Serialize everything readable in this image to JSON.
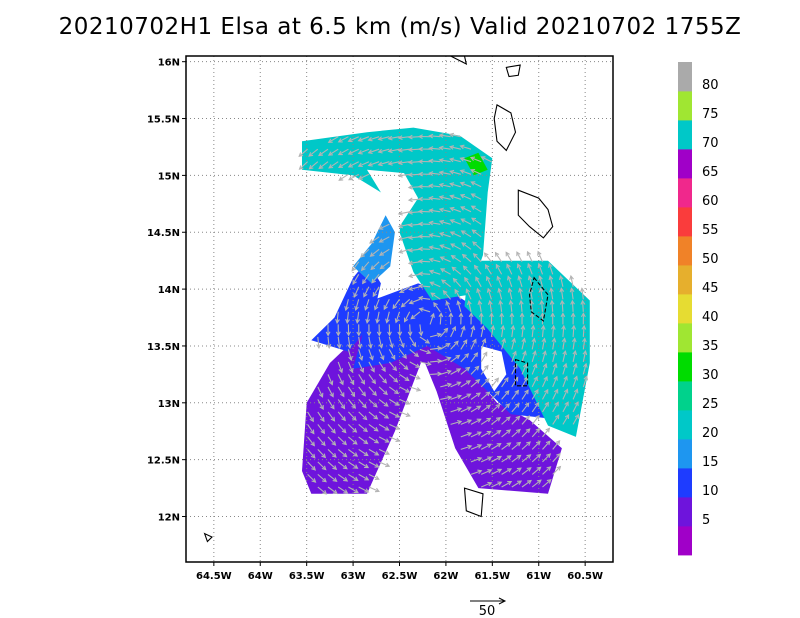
{
  "title": "20210702H1 Elsa at 6.5 km (m/s) Valid 20210702  1755Z",
  "chart_data": {
    "type": "heatmap",
    "title": "20210702H1 Elsa at 6.5 km (m/s) Valid 20210702  1755Z",
    "xlabel": "",
    "ylabel": "",
    "xlim": [
      -64.8,
      -60.2
    ],
    "ylim": [
      11.6,
      16.05
    ],
    "grid": true,
    "x_ticks": [
      {
        "value": -64.5,
        "label": "64.5W"
      },
      {
        "value": -64.0,
        "label": "64W"
      },
      {
        "value": -63.5,
        "label": "63.5W"
      },
      {
        "value": -63.0,
        "label": "63W"
      },
      {
        "value": -62.5,
        "label": "62.5W"
      },
      {
        "value": -62.0,
        "label": "62W"
      },
      {
        "value": -61.5,
        "label": "61.5W"
      },
      {
        "value": -61.0,
        "label": "61W"
      },
      {
        "value": -60.5,
        "label": "60.5W"
      }
    ],
    "y_ticks": [
      {
        "value": 12.0,
        "label": "12N"
      },
      {
        "value": 12.5,
        "label": "12.5N"
      },
      {
        "value": 13.0,
        "label": "13N"
      },
      {
        "value": 13.5,
        "label": "13.5N"
      },
      {
        "value": 14.0,
        "label": "14N"
      },
      {
        "value": 14.5,
        "label": "14.5N"
      },
      {
        "value": 15.0,
        "label": "15N"
      },
      {
        "value": 15.5,
        "label": "15.5N"
      },
      {
        "value": 16.0,
        "label": "16N"
      }
    ],
    "colorbar": {
      "levels": [
        0,
        5,
        10,
        15,
        20,
        25,
        30,
        35,
        40,
        45,
        50,
        55,
        60,
        65,
        70,
        75,
        80,
        85
      ],
      "labels": [
        "5",
        "10",
        "15",
        "20",
        "25",
        "30",
        "35",
        "40",
        "45",
        "50",
        "55",
        "60",
        "65",
        "70",
        "75",
        "80"
      ],
      "colors": [
        "#a000c8",
        "#6e14dc",
        "#1e3cff",
        "#1e96f0",
        "#00c8c8",
        "#00d28c",
        "#00dc00",
        "#a0e632",
        "#e6dc32",
        "#e6af2d",
        "#f08228",
        "#fa3c3c",
        "#f0288c",
        "#a000c8",
        "#00c8c8",
        "#a0e632",
        "#aaaaaa"
      ]
    },
    "reference_vector": {
      "label": "50",
      "speed": 50
    },
    "regions": [
      {
        "name": "west-arm",
        "value": 7,
        "polygon": [
          [
            -63.45,
            12.2
          ],
          [
            -62.85,
            12.2
          ],
          [
            -62.55,
            12.75
          ],
          [
            -62.2,
            13.5
          ],
          [
            -62.45,
            13.9
          ],
          [
            -62.8,
            13.7
          ],
          [
            -63.25,
            13.35
          ],
          [
            -63.5,
            13.0
          ],
          [
            -63.55,
            12.4
          ]
        ]
      },
      {
        "name": "east-arm",
        "value": 6,
        "polygon": [
          [
            -62.35,
            13.9
          ],
          [
            -62.0,
            13.7
          ],
          [
            -61.75,
            13.3
          ],
          [
            -61.45,
            13.0
          ],
          [
            -61.1,
            12.85
          ],
          [
            -60.75,
            12.6
          ],
          [
            -60.9,
            12.2
          ],
          [
            -61.65,
            12.25
          ],
          [
            -61.9,
            12.6
          ],
          [
            -62.1,
            13.1
          ],
          [
            -62.3,
            13.5
          ]
        ]
      },
      {
        "name": "inner-core",
        "value": 8,
        "polygon": [
          [
            -62.6,
            13.85
          ],
          [
            -62.2,
            13.95
          ],
          [
            -61.9,
            13.75
          ],
          [
            -61.6,
            13.45
          ],
          [
            -62.1,
            13.3
          ],
          [
            -62.5,
            13.45
          ]
        ]
      },
      {
        "name": "ring-blue",
        "value": 12,
        "polygon": [
          [
            -63.0,
            13.3
          ],
          [
            -62.8,
            13.9
          ],
          [
            -62.3,
            14.05
          ],
          [
            -61.9,
            13.95
          ],
          [
            -61.2,
            13.6
          ],
          [
            -60.9,
            13.2
          ],
          [
            -60.75,
            12.85
          ],
          [
            -61.3,
            12.9
          ],
          [
            -61.8,
            13.3
          ],
          [
            -62.2,
            13.5
          ],
          [
            -62.6,
            13.35
          ]
        ]
      },
      {
        "name": "northwest-blue",
        "value": 13,
        "polygon": [
          [
            -63.45,
            13.55
          ],
          [
            -63.2,
            13.75
          ],
          [
            -63.0,
            14.1
          ],
          [
            -62.85,
            14.25
          ],
          [
            -62.7,
            14.05
          ],
          [
            -62.8,
            13.7
          ],
          [
            -63.05,
            13.45
          ]
        ]
      },
      {
        "name": "teal-northwest",
        "value": 18,
        "polygon": [
          [
            -63.0,
            14.2
          ],
          [
            -62.8,
            14.4
          ],
          [
            -62.65,
            14.65
          ],
          [
            -62.55,
            14.5
          ],
          [
            -62.6,
            14.2
          ],
          [
            -62.8,
            14.05
          ]
        ]
      },
      {
        "name": "north-band",
        "value": 23,
        "polygon": [
          [
            -63.55,
            15.3
          ],
          [
            -62.85,
            15.38
          ],
          [
            -62.35,
            15.42
          ],
          [
            -61.85,
            15.35
          ],
          [
            -61.5,
            15.15
          ],
          [
            -61.55,
            14.85
          ],
          [
            -61.6,
            14.3
          ],
          [
            -61.75,
            13.95
          ],
          [
            -62.15,
            13.9
          ],
          [
            -62.35,
            14.15
          ],
          [
            -62.5,
            14.5
          ],
          [
            -62.45,
            14.75
          ],
          [
            -62.7,
            14.85
          ],
          [
            -63.0,
            15.0
          ],
          [
            -63.55,
            15.05
          ]
        ]
      },
      {
        "name": "east-green-band",
        "value": 22,
        "polygon": [
          [
            -61.75,
            14.25
          ],
          [
            -60.9,
            14.25
          ],
          [
            -60.45,
            13.9
          ],
          [
            -60.45,
            13.35
          ],
          [
            -60.6,
            12.7
          ],
          [
            -60.9,
            12.8
          ],
          [
            -61.2,
            13.3
          ],
          [
            -61.55,
            13.65
          ],
          [
            -61.8,
            13.85
          ]
        ]
      },
      {
        "name": "green-spot-north",
        "value": 32,
        "polygon": [
          [
            -61.8,
            15.15
          ],
          [
            -61.65,
            15.2
          ],
          [
            -61.55,
            15.05
          ],
          [
            -61.7,
            15.0
          ]
        ]
      },
      {
        "name": "green-spot-west",
        "value": 32,
        "polygon": [
          [
            -62.55,
            14.72
          ],
          [
            -62.45,
            14.75
          ],
          [
            -62.48,
            14.65
          ],
          [
            -62.57,
            14.66
          ]
        ]
      }
    ],
    "gaps": [
      {
        "name": "center-gap",
        "polygon": [
          [
            -61.62,
            13.5
          ],
          [
            -61.4,
            13.45
          ],
          [
            -61.35,
            13.25
          ],
          [
            -61.48,
            13.1
          ],
          [
            -61.62,
            13.3
          ]
        ]
      },
      {
        "name": "north-notch",
        "polygon": [
          [
            -62.85,
            15.05
          ],
          [
            -62.45,
            15.02
          ],
          [
            -62.3,
            14.8
          ],
          [
            -62.5,
            14.55
          ],
          [
            -62.7,
            14.85
          ]
        ]
      }
    ],
    "coastlines": [
      {
        "name": "guadeloupe-edge",
        "closed": true,
        "dashed": false,
        "points": [
          [
            -61.95,
            16.05
          ],
          [
            -61.78,
            15.98
          ],
          [
            -61.8,
            16.05
          ]
        ]
      },
      {
        "name": "marie-galante",
        "closed": true,
        "dashed": false,
        "points": [
          [
            -61.35,
            15.95
          ],
          [
            -61.2,
            15.97
          ],
          [
            -61.22,
            15.88
          ],
          [
            -61.32,
            15.87
          ]
        ]
      },
      {
        "name": "dominica",
        "closed": true,
        "dashed": false,
        "points": [
          [
            -61.45,
            15.62
          ],
          [
            -61.3,
            15.55
          ],
          [
            -61.25,
            15.38
          ],
          [
            -61.35,
            15.22
          ],
          [
            -61.45,
            15.3
          ],
          [
            -61.48,
            15.5
          ]
        ]
      },
      {
        "name": "martinique",
        "closed": true,
        "dashed": false,
        "points": [
          [
            -61.22,
            14.87
          ],
          [
            -61.0,
            14.8
          ],
          [
            -60.9,
            14.7
          ],
          [
            -60.85,
            14.55
          ],
          [
            -60.95,
            14.45
          ],
          [
            -61.1,
            14.55
          ],
          [
            -61.22,
            14.65
          ]
        ]
      },
      {
        "name": "st-lucia",
        "closed": true,
        "dashed": true,
        "points": [
          [
            -61.05,
            14.1
          ],
          [
            -60.9,
            13.95
          ],
          [
            -60.95,
            13.72
          ],
          [
            -61.08,
            13.8
          ],
          [
            -61.1,
            13.95
          ]
        ]
      },
      {
        "name": "st-vincent",
        "closed": true,
        "dashed": true,
        "points": [
          [
            -61.25,
            13.38
          ],
          [
            -61.12,
            13.35
          ],
          [
            -61.12,
            13.15
          ],
          [
            -61.25,
            13.15
          ]
        ]
      },
      {
        "name": "grenada",
        "closed": true,
        "dashed": false,
        "points": [
          [
            -61.8,
            12.25
          ],
          [
            -61.6,
            12.2
          ],
          [
            -61.62,
            12.0
          ],
          [
            -61.78,
            12.05
          ]
        ]
      },
      {
        "name": "isla-aves-west",
        "closed": true,
        "dashed": false,
        "points": [
          [
            -64.6,
            11.85
          ],
          [
            -64.52,
            11.82
          ],
          [
            -64.57,
            11.78
          ]
        ]
      }
    ]
  }
}
